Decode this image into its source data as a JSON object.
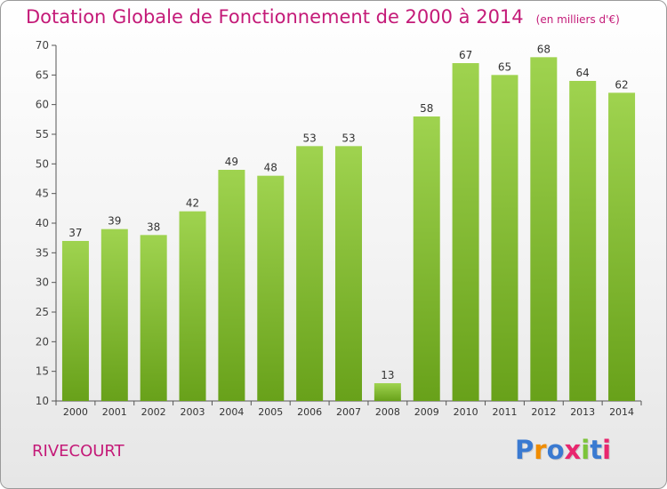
{
  "header": {
    "title": "Dotation Globale de Fonctionnement de 2000 à 2014",
    "unit": "(en milliers d'€)"
  },
  "footer": {
    "commune": "RIVECOURT",
    "logo": "Proxiti",
    "logo_colors": [
      "#3a7ad1",
      "#f08c00",
      "#3a7ad1",
      "#e8266e",
      "#7cc43a",
      "#3a7ad1",
      "#e8266e"
    ]
  },
  "chart_data": {
    "type": "bar",
    "categories": [
      "2000",
      "2001",
      "2002",
      "2003",
      "2004",
      "2005",
      "2006",
      "2007",
      "2008",
      "2009",
      "2010",
      "2011",
      "2012",
      "2013",
      "2014"
    ],
    "values": [
      37,
      39,
      38,
      42,
      49,
      48,
      53,
      53,
      13,
      58,
      67,
      65,
      68,
      64,
      62
    ],
    "ylim": [
      10,
      70
    ],
    "yticks": [
      10,
      15,
      20,
      25,
      30,
      35,
      40,
      45,
      50,
      55,
      60,
      65,
      70
    ],
    "grid": false,
    "bar_color_top": "#9fd34f",
    "bar_color_bottom": "#68a11a",
    "axis_color": "#555555"
  }
}
